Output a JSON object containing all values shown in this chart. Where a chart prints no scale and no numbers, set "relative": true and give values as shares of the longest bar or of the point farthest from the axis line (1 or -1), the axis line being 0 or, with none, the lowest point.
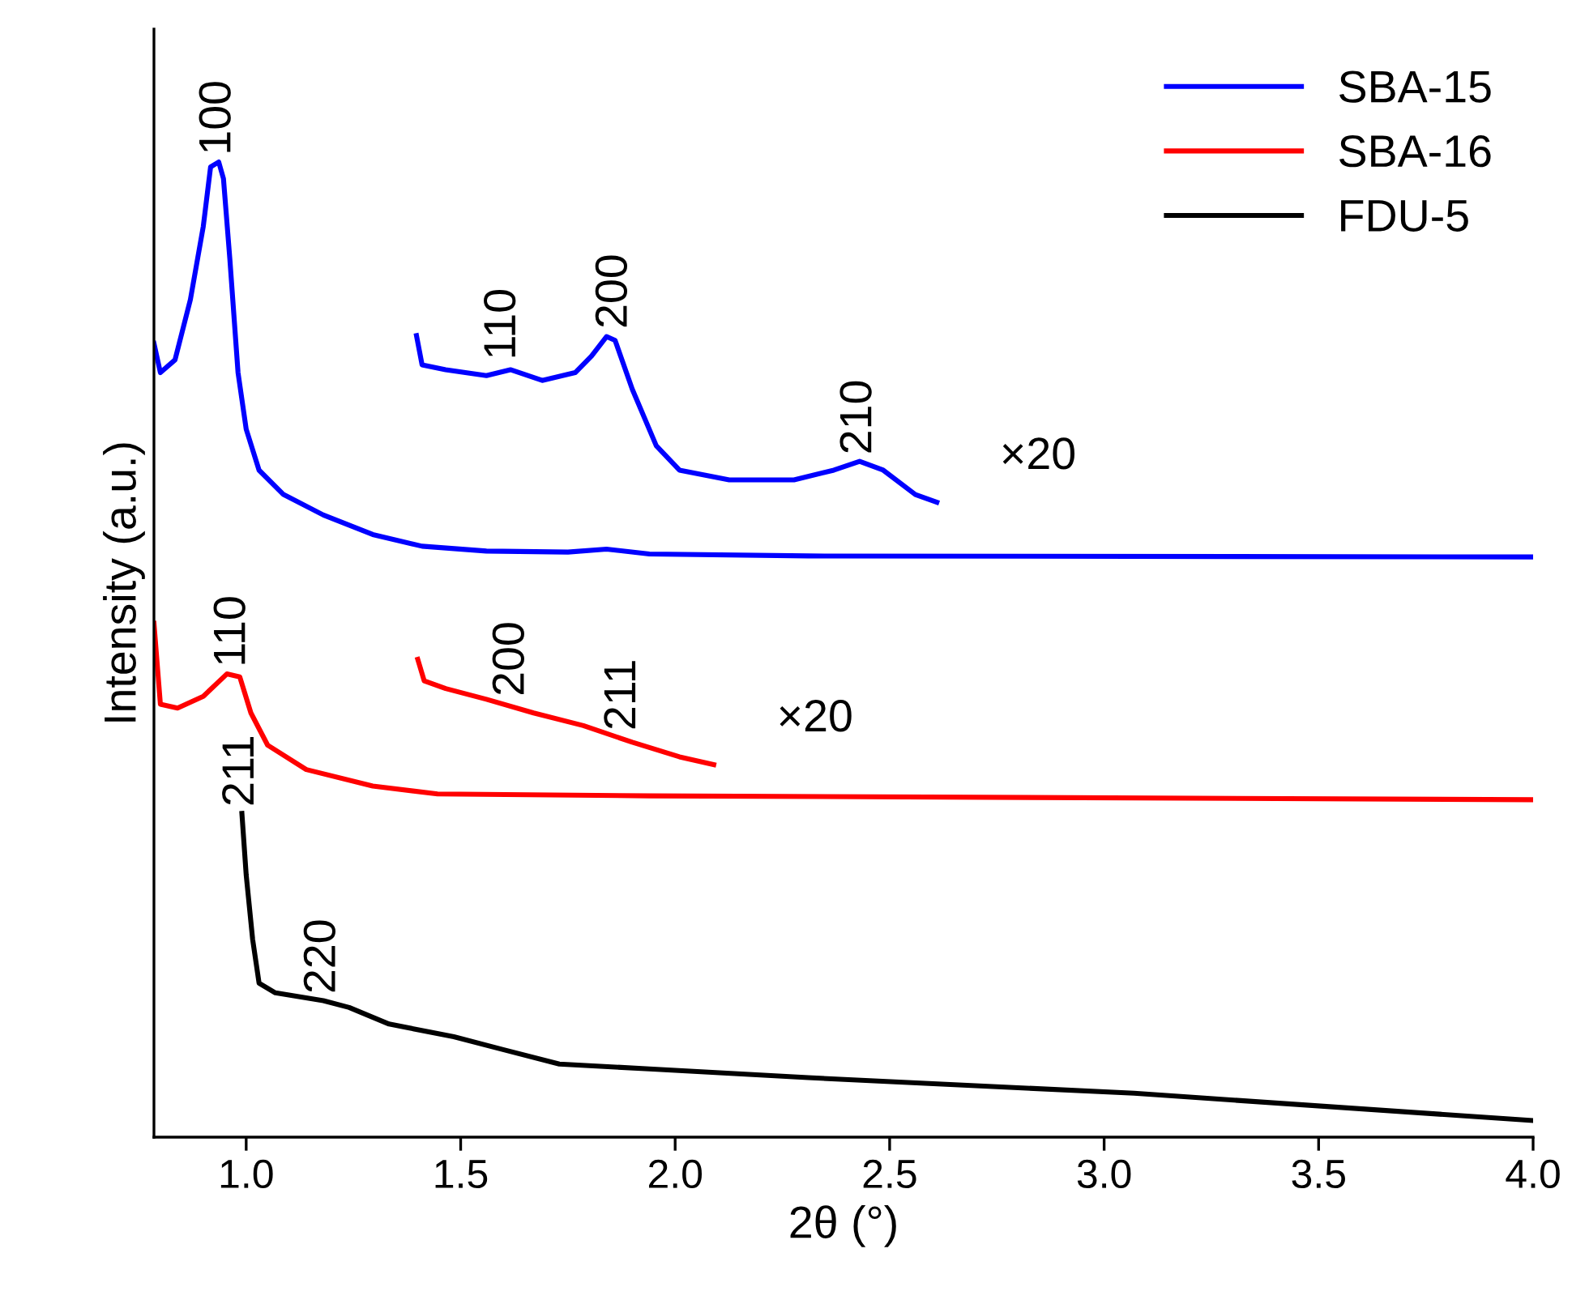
{
  "chart_data": {
    "type": "line",
    "relative": true,
    "xlabel": "2θ (°)",
    "ylabel": "Intensity (a.u.)",
    "xlim": [
      0.785,
      4.0
    ],
    "xticks": [
      {
        "value": 1.0,
        "label": "1.0"
      },
      {
        "value": 1.5,
        "label": "1.5"
      },
      {
        "value": 2.0,
        "label": "2.0"
      },
      {
        "value": 2.5,
        "label": "2.5"
      },
      {
        "value": 3.0,
        "label": "3.0"
      },
      {
        "value": 3.5,
        "label": "3.5"
      },
      {
        "value": 4.0,
        "label": "4.0"
      }
    ],
    "tick_labels": "x",
    "grid": false,
    "legend": "top right",
    "line_style": "solid",
    "marker": "none",
    "series": [
      {
        "name": "SBA-15",
        "color": "#0000ff",
        "x": [
          0.785,
          0.8,
          0.834,
          0.87,
          0.9,
          0.917,
          0.936,
          0.947,
          0.962,
          0.981,
          1.0,
          1.03,
          1.087,
          1.18,
          1.295,
          1.41,
          1.56,
          1.75,
          1.84,
          1.94,
          2.31,
          4.0
        ],
        "values": [
          0.814,
          0.784,
          0.797,
          0.859,
          0.934,
          0.995,
          1.0,
          0.983,
          0.9,
          0.784,
          0.726,
          0.684,
          0.659,
          0.638,
          0.618,
          0.606,
          0.601,
          0.6,
          0.603,
          0.598,
          0.596,
          0.595
        ]
      },
      {
        "name": "×20",
        "color": "#0000ff",
        "x": [
          1.397,
          1.41,
          1.465,
          1.56,
          1.616,
          1.69,
          1.767,
          1.805,
          1.84,
          1.86,
          1.9,
          1.956,
          2.01,
          2.126,
          2.277,
          2.37,
          2.43,
          2.485,
          2.56,
          2.61
        ],
        "values": [
          0.822,
          0.792,
          0.787,
          0.781,
          0.787,
          0.776,
          0.784,
          0.801,
          0.821,
          0.817,
          0.767,
          0.709,
          0.684,
          0.674,
          0.674,
          0.684,
          0.693,
          0.684,
          0.659,
          0.651
        ]
      },
      {
        "name": "SBA-16",
        "color": "#ff0000",
        "x": [
          0.785,
          0.8,
          0.84,
          0.9,
          0.955,
          0.985,
          1.011,
          1.05,
          1.14,
          1.295,
          1.446,
          1.94,
          4.0
        ],
        "values": [
          0.527,
          0.444,
          0.44,
          0.452,
          0.475,
          0.472,
          0.435,
          0.402,
          0.377,
          0.36,
          0.352,
          0.35,
          0.346
        ]
      },
      {
        "name": "×20",
        "color": "#ff0000",
        "x": [
          1.4,
          1.415,
          1.465,
          1.56,
          1.67,
          1.786,
          1.9,
          2.01,
          2.09
        ],
        "values": [
          0.49,
          0.468,
          0.46,
          0.449,
          0.435,
          0.422,
          0.405,
          0.39,
          0.382
        ]
      },
      {
        "name": "FDU-5",
        "color": "#000000",
        "x": [
          0.99,
          1.0,
          1.015,
          1.03,
          1.068,
          1.18,
          1.24,
          1.333,
          1.484,
          1.597,
          1.73,
          1.94,
          2.31,
          3.07,
          4.0
        ],
        "values": [
          0.332,
          0.269,
          0.203,
          0.158,
          0.148,
          0.14,
          0.133,
          0.116,
          0.103,
          0.09,
          0.075,
          0.07,
          0.061,
          0.045,
          0.017
        ]
      }
    ],
    "annotations": [
      {
        "text": "100",
        "x": 0.936,
        "y": 1.0
      },
      {
        "text": "110",
        "x": 1.6,
        "y": 0.79
      },
      {
        "text": "200",
        "x": 1.86,
        "y": 0.822
      },
      {
        "text": "210",
        "x": 2.43,
        "y": 0.693
      },
      {
        "text": "110",
        "x": 0.97,
        "y": 0.475
      },
      {
        "text": "200",
        "x": 1.62,
        "y": 0.445
      },
      {
        "text": "211",
        "x": 1.88,
        "y": 0.41
      },
      {
        "text": "211",
        "x": 0.99,
        "y": 0.332
      },
      {
        "text": "220",
        "x": 1.18,
        "y": 0.14
      }
    ]
  }
}
